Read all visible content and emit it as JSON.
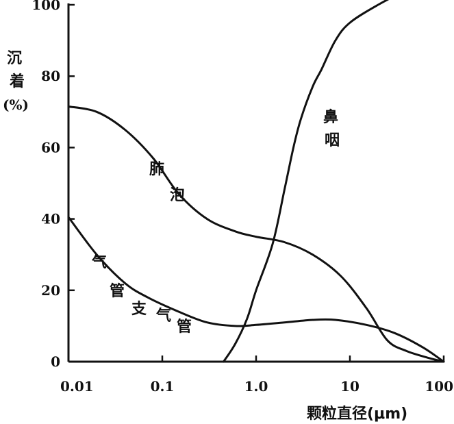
{
  "chart_data": {
    "type": "line",
    "xscale": "log",
    "xlim": [
      0.01,
      100
    ],
    "ylim": [
      0,
      110
    ],
    "grid": false,
    "ylabel": [
      "沉",
      "着",
      "(%)"
    ],
    "xlabel": "颗粒直径(μm)",
    "x_ticks": [
      {
        "value": 0.01,
        "label": "0.01"
      },
      {
        "value": 0.1,
        "label": "0.1"
      },
      {
        "value": 1,
        "label": "1.0"
      },
      {
        "value": 10,
        "label": "10"
      },
      {
        "value": 100,
        "label": "100"
      }
    ],
    "y_ticks": [
      {
        "value": 0,
        "label": "0"
      },
      {
        "value": 20,
        "label": "20"
      },
      {
        "value": 40,
        "label": "40"
      },
      {
        "value": 60,
        "label": "60"
      },
      {
        "value": 80,
        "label": "80"
      },
      {
        "value": 100,
        "label": "100"
      }
    ],
    "series": [
      {
        "name": "肺泡",
        "name_chars": [
          "肺",
          "泡"
        ],
        "x": [
          0.01,
          0.02,
          0.04,
          0.08,
          0.15,
          0.3,
          0.6,
          1.0,
          2.0,
          4.0,
          8.0,
          15,
          25,
          40,
          70,
          100
        ],
        "y": [
          71.5,
          70,
          65,
          57,
          47,
          40,
          36.5,
          35,
          33.5,
          30,
          24,
          15,
          6,
          3,
          1,
          0
        ]
      },
      {
        "name": "气管支气管",
        "name_chars": [
          "气",
          "管",
          "支",
          "气",
          "管"
        ],
        "x": [
          0.01,
          0.02,
          0.04,
          0.07,
          0.15,
          0.3,
          0.6,
          1.0,
          2.0,
          4.0,
          7.0,
          15,
          30,
          60,
          100
        ],
        "y": [
          40.5,
          30,
          22,
          18,
          14,
          11,
          10,
          10.3,
          11,
          11.7,
          11.7,
          10.3,
          8,
          4,
          0
        ]
      },
      {
        "name": "鼻咽",
        "name_chars": [
          "鼻",
          "咽"
        ],
        "x": [
          0.45,
          0.6,
          0.8,
          1.0,
          1.5,
          2.0,
          2.5,
          3.0,
          4.0,
          5.0,
          7.0,
          10,
          20,
          40,
          70,
          100
        ],
        "y": [
          0,
          5,
          12,
          20,
          33,
          48,
          60,
          68,
          77,
          82,
          90,
          95,
          100,
          104,
          106,
          107
        ]
      }
    ]
  }
}
